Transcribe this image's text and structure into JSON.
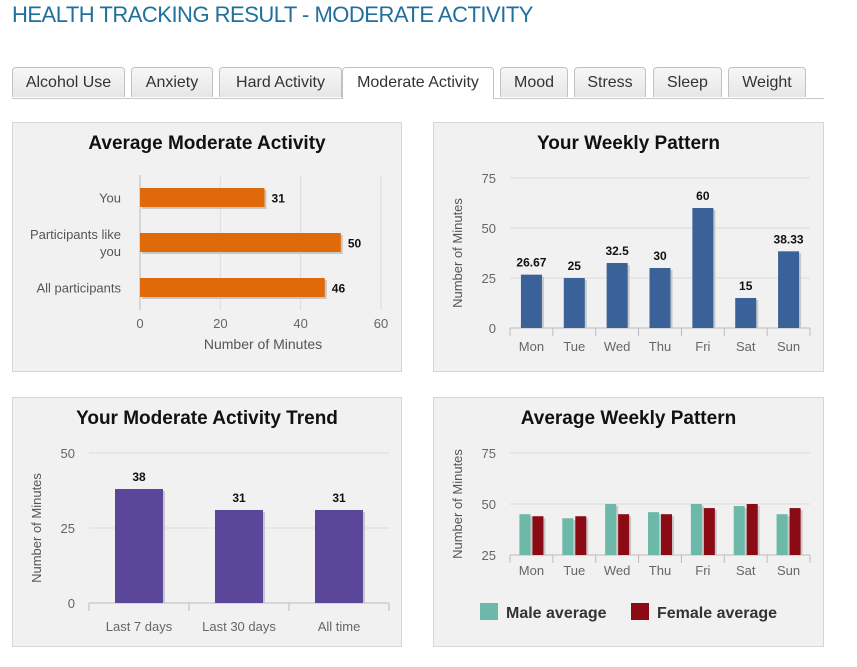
{
  "page_title": "HEALTH TRACKING RESULT - MODERATE ACTIVITY",
  "tabs": [
    {
      "label": "Alcohol Use",
      "active": false
    },
    {
      "label": "Anxiety",
      "active": false
    },
    {
      "label": "Hard Activity",
      "active": false
    },
    {
      "label": "Moderate Activity",
      "active": true
    },
    {
      "label": "Mood",
      "active": false
    },
    {
      "label": "Stress",
      "active": false
    },
    {
      "label": "Sleep",
      "active": false
    },
    {
      "label": "Weight",
      "active": false
    }
  ],
  "colors": {
    "orange": "#e06a09",
    "blue": "#3a6198",
    "purple": "#5a4799",
    "male": "#6cb8a9",
    "female": "#8a0b14"
  },
  "chart_data": [
    {
      "type": "bar",
      "orientation": "horizontal",
      "title": "Average Moderate Activity",
      "categories": [
        "You",
        "Participants like you",
        "All participants"
      ],
      "category_lines": [
        [
          "You"
        ],
        [
          "Participants like",
          "you"
        ],
        [
          "All participants"
        ]
      ],
      "values": [
        31,
        50,
        46
      ],
      "xlabel": "Number of Minutes",
      "xlim": [
        0,
        60
      ],
      "xticks": [
        0,
        20,
        40,
        60
      ]
    },
    {
      "type": "bar",
      "title": "Your Weekly Pattern",
      "categories": [
        "Mon",
        "Tue",
        "Wed",
        "Thu",
        "Fri",
        "Sat",
        "Sun"
      ],
      "values": [
        26.67,
        25,
        32.5,
        30,
        60,
        15,
        38.33
      ],
      "ylabel": "Number of Minutes",
      "ylim": [
        0,
        75
      ],
      "yticks": [
        0,
        25,
        50,
        75
      ]
    },
    {
      "type": "bar",
      "title": "Your Moderate Activity Trend",
      "categories": [
        "Last 7 days",
        "Last 30 days",
        "All time"
      ],
      "values": [
        38,
        31,
        31
      ],
      "ylabel": "Number of Minutes",
      "ylim": [
        0,
        50
      ],
      "yticks": [
        0,
        25,
        50
      ]
    },
    {
      "type": "bar",
      "title": "Average Weekly Pattern",
      "categories": [
        "Mon",
        "Tue",
        "Wed",
        "Thu",
        "Fri",
        "Sat",
        "Sun"
      ],
      "series": [
        {
          "name": "Male average",
          "values": [
            45,
            43,
            50,
            46,
            50,
            49,
            45
          ]
        },
        {
          "name": "Female average",
          "values": [
            44,
            44,
            45,
            45,
            48,
            50,
            48
          ]
        }
      ],
      "ylabel": "Number of Minutes",
      "ylim": [
        25,
        75
      ],
      "yticks": [
        25,
        50,
        75
      ],
      "legend": "bottom"
    }
  ]
}
